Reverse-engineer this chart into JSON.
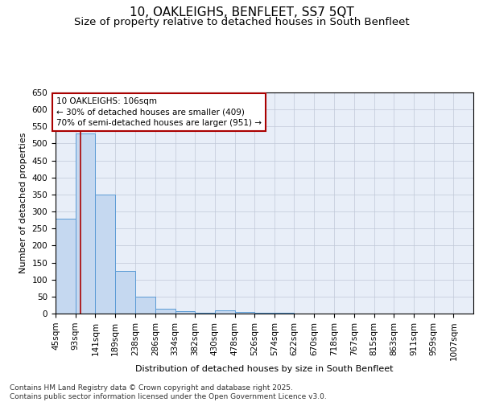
{
  "title": "10, OAKLEIGHS, BENFLEET, SS7 5QT",
  "subtitle": "Size of property relative to detached houses in South Benfleet",
  "xlabel": "Distribution of detached houses by size in South Benfleet",
  "ylabel": "Number of detached properties",
  "bar_values": [
    280,
    530,
    350,
    125,
    50,
    15,
    8,
    2,
    10,
    5,
    2,
    2,
    1,
    1,
    1,
    1,
    1,
    1,
    1,
    1,
    1
  ],
  "bin_edges": [
    45,
    93,
    141,
    189,
    238,
    286,
    334,
    382,
    430,
    478,
    526,
    574,
    622,
    670,
    718,
    767,
    815,
    863,
    911,
    959,
    1007,
    1055
  ],
  "x_tick_labels": [
    "45sqm",
    "93sqm",
    "141sqm",
    "189sqm",
    "238sqm",
    "286sqm",
    "334sqm",
    "382sqm",
    "430sqm",
    "478sqm",
    "526sqm",
    "574sqm",
    "622sqm",
    "670sqm",
    "718sqm",
    "767sqm",
    "815sqm",
    "863sqm",
    "911sqm",
    "959sqm",
    "1007sqm"
  ],
  "bar_color": "#c5d8f0",
  "bar_edge_color": "#5b9bd5",
  "grid_color": "#c0c8d8",
  "red_line_x": 106,
  "annotation_text": "10 OAKLEIGHS: 106sqm\n← 30% of detached houses are smaller (409)\n70% of semi-detached houses are larger (951) →",
  "annotation_box_color": "#aa0000",
  "ylim": [
    0,
    650
  ],
  "yticks": [
    0,
    50,
    100,
    150,
    200,
    250,
    300,
    350,
    400,
    450,
    500,
    550,
    600,
    650
  ],
  "footer_text": "Contains HM Land Registry data © Crown copyright and database right 2025.\nContains public sector information licensed under the Open Government Licence v3.0.",
  "title_fontsize": 11,
  "subtitle_fontsize": 9.5,
  "axis_label_fontsize": 8,
  "tick_fontsize": 7.5,
  "annotation_fontsize": 7.5,
  "footer_fontsize": 6.5,
  "background_color": "#e8eef8"
}
